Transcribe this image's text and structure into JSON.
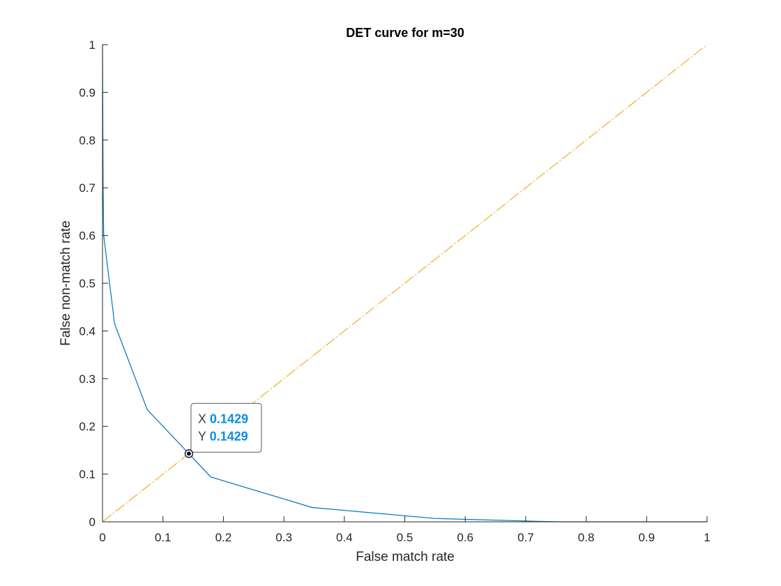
{
  "chart_data": {
    "type": "line",
    "title": "DET curve for m=30",
    "xlabel": "False match rate",
    "ylabel": "False non-match rate",
    "xlim": [
      0,
      1
    ],
    "ylim": [
      0,
      1
    ],
    "xticks": [
      "0",
      "0.1",
      "0.2",
      "0.3",
      "0.4",
      "0.5",
      "0.6",
      "0.7",
      "0.8",
      "0.9",
      "1"
    ],
    "yticks": [
      "0",
      "0.1",
      "0.2",
      "0.3",
      "0.4",
      "0.5",
      "0.6",
      "0.7",
      "0.8",
      "0.9",
      "1"
    ],
    "grid": false,
    "series": [
      {
        "color": "#0072bd",
        "style": "solid",
        "x": [
          0,
          0.001,
          0.002,
          0.02,
          0.074,
          0.1429,
          0.179,
          0.347,
          0.55,
          0.72,
          0.76,
          1.0
        ],
        "y": [
          1.0,
          0.7,
          0.6,
          0.415,
          0.235,
          0.1429,
          0.094,
          0.03,
          0.007,
          0.001,
          0,
          0
        ]
      },
      {
        "color": "#edb120",
        "style": "dashdot",
        "x": [
          0,
          1
        ],
        "y": [
          0,
          1
        ]
      }
    ],
    "datatip": {
      "x": 0.1429,
      "y": 0.1429,
      "x_label": "X",
      "y_label": "Y",
      "x_text": "0.1429",
      "y_text": "0.1429"
    }
  }
}
